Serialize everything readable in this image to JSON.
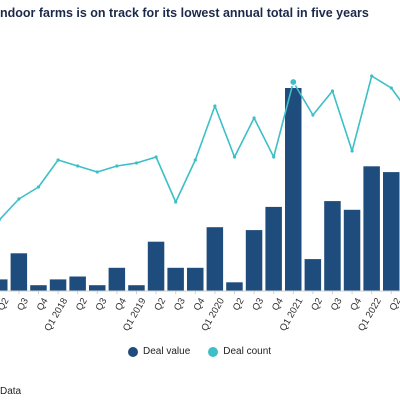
{
  "title": "ndoor farms is on track for its lowest  annual total in five years",
  "source": "Data",
  "colors": {
    "bar": "#1e4c7c",
    "line": "#3dbfc8",
    "axis": "#cfcfcf",
    "tick_text": "#333333"
  },
  "legend": {
    "bar_label": "Deal value",
    "line_label": "Deal count"
  },
  "chart_data": {
    "type": "bar",
    "title": "ndoor farms is on track for its lowest  annual total in five years",
    "xlabel": "",
    "ylabel": "",
    "grid": false,
    "legend_position": "bottom",
    "categories": [
      "Q2",
      "Q3",
      "Q4",
      "Q1 2018",
      "Q2",
      "Q3",
      "Q4",
      "Q1 2019",
      "Q2",
      "Q3",
      "Q4",
      "Q1 2020",
      "Q2",
      "Q3",
      "Q4",
      "Q1 2021",
      "Q2",
      "Q3",
      "Q4",
      "Q1 2022",
      "Q2",
      "Q3"
    ],
    "series": [
      {
        "name": "Deal value",
        "type": "bar",
        "values": [
          4,
          13,
          2,
          4,
          5,
          2,
          8,
          2,
          17,
          8,
          8,
          22,
          3,
          21,
          29,
          70,
          11,
          31,
          28,
          43,
          41,
          40
        ]
      },
      {
        "name": "Deal count",
        "type": "line",
        "values": [
          12,
          19,
          23,
          32,
          30,
          28,
          30,
          31,
          33,
          18,
          32,
          50,
          33,
          46,
          33,
          58,
          47,
          55,
          35,
          60,
          56,
          47
        ]
      }
    ],
    "highlighted_point_index": 15
  }
}
